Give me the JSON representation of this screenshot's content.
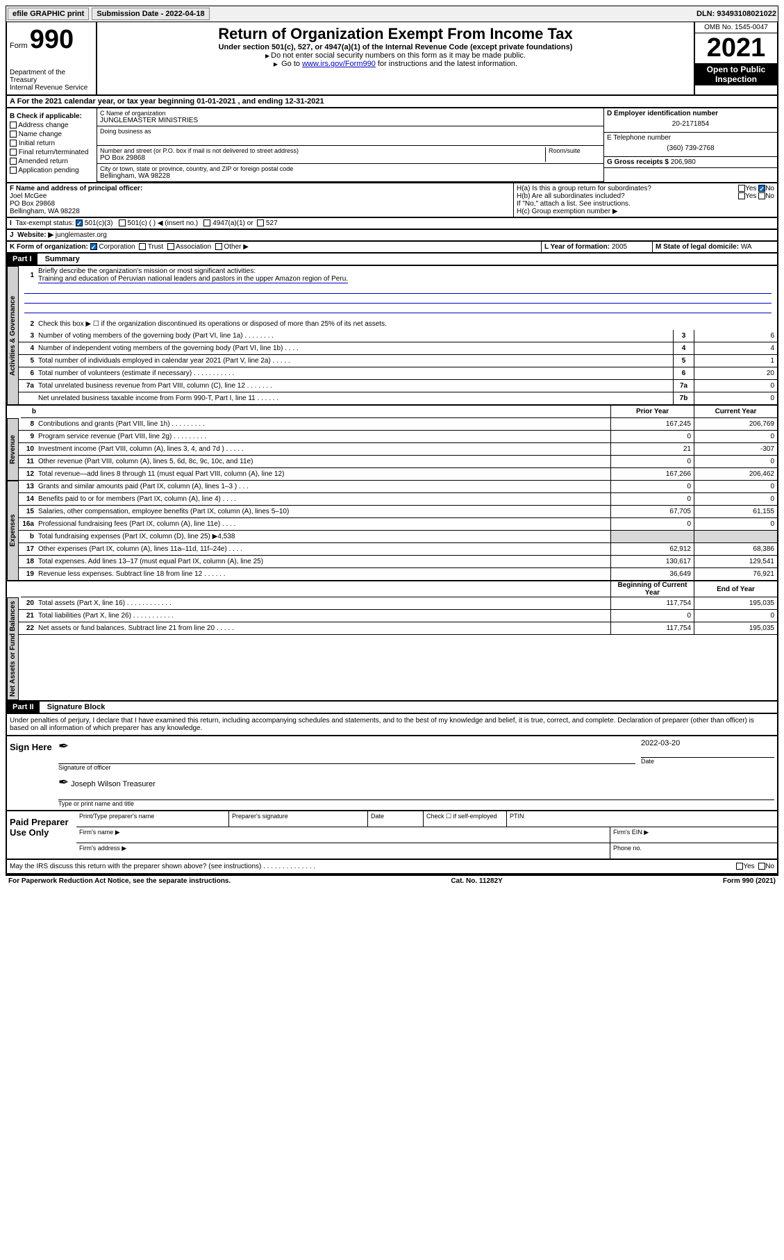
{
  "topbar": {
    "efile": "efile GRAPHIC print",
    "submission_label": "Submission Date - 2022-04-18",
    "dln": "DLN: 93493108021022"
  },
  "header": {
    "form_word": "Form",
    "form_number": "990",
    "dept": "Department of the Treasury\nInternal Revenue Service",
    "title": "Return of Organization Exempt From Income Tax",
    "subtitle": "Under section 501(c), 527, or 4947(a)(1) of the Internal Revenue Code (except private foundations)",
    "note1": "Do not enter social security numbers on this form as it may be made public.",
    "note2_pre": "Go to ",
    "note2_link": "www.irs.gov/Form990",
    "note2_post": " for instructions and the latest information.",
    "omb": "OMB No. 1545-0047",
    "year": "2021",
    "open": "Open to Public Inspection"
  },
  "row_a": "For the 2021 calendar year, or tax year beginning 01-01-2021    , and ending 12-31-2021",
  "section_b": {
    "label": "B Check if applicable:",
    "items": [
      "Address change",
      "Name change",
      "Initial return",
      "Final return/terminated",
      "Amended return",
      "Application pending"
    ]
  },
  "section_c": {
    "name_label": "C Name of organization",
    "name": "JUNGLEMASTER MINISTRIES",
    "dba_label": "Doing business as",
    "addr_label": "Number and street (or P.O. box if mail is not delivered to street address)",
    "room_label": "Room/suite",
    "addr": "PO Box 29868",
    "city_label": "City or town, state or province, country, and ZIP or foreign postal code",
    "city": "Bellingham, WA  98228"
  },
  "section_d": {
    "ein_label": "D Employer identification number",
    "ein": "20-2171854",
    "phone_label": "E Telephone number",
    "phone": "(360) 739-2768",
    "gross_label": "G Gross receipts $",
    "gross": "206,980"
  },
  "section_f": {
    "label": "F  Name and address of principal officer:",
    "name": "Joel McGee",
    "addr1": "PO Box 29868",
    "addr2": "Bellingham, WA  98228"
  },
  "section_h": {
    "ha": "H(a)  Is this a group return for subordinates?",
    "hb": "H(b)  Are all subordinates included?",
    "hb_note": "If \"No,\" attach a list. See instructions.",
    "hc": "H(c)  Group exemption number ▶",
    "yes": "Yes",
    "no": "No"
  },
  "section_i": {
    "label": "Tax-exempt status:",
    "opt1": "501(c)(3)",
    "opt2": "501(c) (   ) ◀ (insert no.)",
    "opt3": "4947(a)(1) or",
    "opt4": "527"
  },
  "section_j": {
    "label": "Website: ▶",
    "value": "junglemaster.org"
  },
  "section_k": {
    "label": "K Form of organization:",
    "opts": [
      "Corporation",
      "Trust",
      "Association",
      "Other ▶"
    ]
  },
  "section_l": {
    "label": "L Year of formation:",
    "value": "2005"
  },
  "section_m": {
    "label": "M State of legal domicile:",
    "value": "WA"
  },
  "part1": {
    "hdr": "Part I",
    "title": "Summary",
    "line1_label": "Briefly describe the organization's mission or most significant activities:",
    "mission": "Training and education of Peruvian national leaders and pastors in the upper Amazon region of Peru.",
    "line2": "Check this box ▶ ☐  if the organization discontinued its operations or disposed of more than 25% of its net assets.",
    "tabs": {
      "gov": "Activities & Governance",
      "rev": "Revenue",
      "exp": "Expenses",
      "net": "Net Assets or Fund Balances"
    },
    "rows_gov": [
      {
        "n": "3",
        "d": "Number of voting members of the governing body (Part VI, line 1a)   .    .    .    .    .    .    .    .",
        "box": "3",
        "v": "6"
      },
      {
        "n": "4",
        "d": "Number of independent voting members of the governing body (Part VI, line 1b)    .    .    .    .",
        "box": "4",
        "v": "4"
      },
      {
        "n": "5",
        "d": "Total number of individuals employed in calendar year 2021 (Part V, line 2a)    .    .    .    .    .",
        "box": "5",
        "v": "1"
      },
      {
        "n": "6",
        "d": "Total number of volunteers (estimate if necessary)    .    .    .    .    .    .    .    .    .    .    .",
        "box": "6",
        "v": "20"
      },
      {
        "n": "7a",
        "d": "Total unrelated business revenue from Part VIII, column (C), line 12    .    .    .    .    .    .    .",
        "box": "7a",
        "v": "0"
      },
      {
        "n": "",
        "d": "Net unrelated business taxable income from Form 990-T, Part I, line 11    .    .    .    .    .    .",
        "box": "7b",
        "v": "0"
      }
    ],
    "col_hdr_prior": "Prior Year",
    "col_hdr_curr": "Current Year",
    "rows_rev": [
      {
        "n": "8",
        "d": "Contributions and grants (Part VIII, line 1h)    .    .    .    .    .    .    .    .    .",
        "p": "167,245",
        "c": "206,769"
      },
      {
        "n": "9",
        "d": "Program service revenue (Part VIII, line 2g)    .    .    .    .    .    .    .    .    .",
        "p": "0",
        "c": "0"
      },
      {
        "n": "10",
        "d": "Investment income (Part VIII, column (A), lines 3, 4, and 7d )    .    .    .    .    .",
        "p": "21",
        "c": "-307"
      },
      {
        "n": "11",
        "d": "Other revenue (Part VIII, column (A), lines 5, 6d, 8c, 9c, 10c, and 11e)",
        "p": "0",
        "c": "0"
      },
      {
        "n": "12",
        "d": "Total revenue—add lines 8 through 11 (must equal Part VIII, column (A), line 12)",
        "p": "167,266",
        "c": "206,462"
      }
    ],
    "rows_exp": [
      {
        "n": "13",
        "d": "Grants and similar amounts paid (Part IX, column (A), lines 1–3 )    .    .    .",
        "p": "0",
        "c": "0"
      },
      {
        "n": "14",
        "d": "Benefits paid to or for members (Part IX, column (A), line 4)    .    .    .    .",
        "p": "0",
        "c": "0"
      },
      {
        "n": "15",
        "d": "Salaries, other compensation, employee benefits (Part IX, column (A), lines 5–10)",
        "p": "67,705",
        "c": "61,155"
      },
      {
        "n": "16a",
        "d": "Professional fundraising fees (Part IX, column (A), line 11e)    .    .    .    .",
        "p": "0",
        "c": "0"
      },
      {
        "n": "b",
        "d": "Total fundraising expenses (Part IX, column (D), line 25) ▶4,538",
        "p": "",
        "c": "",
        "shaded": true
      },
      {
        "n": "17",
        "d": "Other expenses (Part IX, column (A), lines 11a–11d, 11f–24e)    .    .    .    .",
        "p": "62,912",
        "c": "68,386"
      },
      {
        "n": "18",
        "d": "Total expenses. Add lines 13–17 (must equal Part IX, column (A), line 25)",
        "p": "130,617",
        "c": "129,541"
      },
      {
        "n": "19",
        "d": "Revenue less expenses. Subtract line 18 from line 12    .    .    .    .    .    .",
        "p": "36,649",
        "c": "76,921"
      }
    ],
    "col_hdr_begin": "Beginning of Current Year",
    "col_hdr_end": "End of Year",
    "rows_net": [
      {
        "n": "20",
        "d": "Total assets (Part X, line 16)    .    .    .    .    .    .    .    .    .    .    .    .",
        "p": "117,754",
        "c": "195,035"
      },
      {
        "n": "21",
        "d": "Total liabilities (Part X, line 26)    .    .    .    .    .    .    .    .    .    .    .",
        "p": "0",
        "c": "0"
      },
      {
        "n": "22",
        "d": "Net assets or fund balances. Subtract line 21 from line 20    .    .    .    .    .",
        "p": "117,754",
        "c": "195,035"
      }
    ]
  },
  "part2": {
    "hdr": "Part II",
    "title": "Signature Block",
    "perjury": "Under penalties of perjury, I declare that I have examined this return, including accompanying schedules and statements, and to the best of my knowledge and belief, it is true, correct, and complete. Declaration of preparer (other than officer) is based on all information of which preparer has any knowledge.",
    "sign_here": "Sign Here",
    "sig_officer": "Signature of officer",
    "date": "Date",
    "sig_date": "2022-03-20",
    "name_title": "Joseph Wilson Treasurer",
    "name_title_label": "Type or print name and title",
    "paid_prep": "Paid Preparer Use Only",
    "prep_name": "Print/Type preparer's name",
    "prep_sig": "Preparer's signature",
    "prep_date": "Date",
    "prep_check": "Check ☐ if self-employed",
    "ptin": "PTIN",
    "firm_name": "Firm's name   ▶",
    "firm_ein": "Firm's EIN ▶",
    "firm_addr": "Firm's address ▶",
    "phone": "Phone no.",
    "discuss": "May the IRS discuss this return with the preparer shown above? (see instructions)    .    .    .    .    .    .    .    .    .    .    .    .    .    .",
    "yes": "Yes",
    "no": "No"
  },
  "footer": {
    "left": "For Paperwork Reduction Act Notice, see the separate instructions.",
    "mid": "Cat. No. 11282Y",
    "right": "Form 990 (2021)"
  }
}
